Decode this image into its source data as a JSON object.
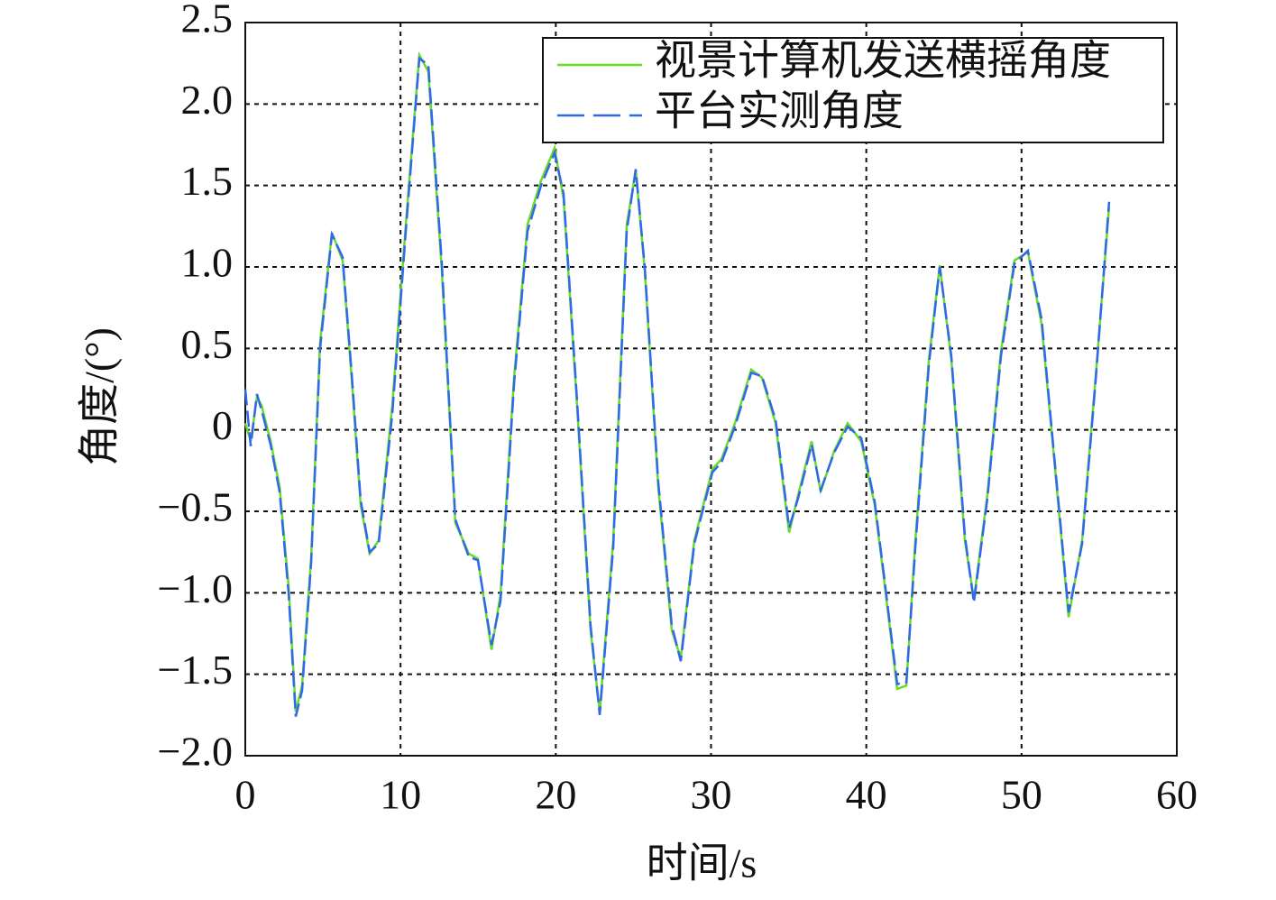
{
  "chart_data": {
    "type": "line",
    "xlabel": "时间/s",
    "ylabel": "角度/(°)",
    "x": [
      0.0,
      0.35,
      0.75,
      1.05,
      1.63,
      2.21,
      2.79,
      3.25,
      3.66,
      4.24,
      4.82,
      5.58,
      6.27,
      6.85,
      7.43,
      8.01,
      8.59,
      9.47,
      10.34,
      11.21,
      11.79,
      12.66,
      13.53,
      14.4,
      14.98,
      15.86,
      16.44,
      17.31,
      18.18,
      19.05,
      19.92,
      20.5,
      21.37,
      22.24,
      22.83,
      23.7,
      24.57,
      25.15,
      25.73,
      26.6,
      27.47,
      28.05,
      28.92,
      30.09,
      30.67,
      31.54,
      32.59,
      33.28,
      34.16,
      35.03,
      35.61,
      36.48,
      37.06,
      37.93,
      38.8,
      39.67,
      40.54,
      41.12,
      41.99,
      42.58,
      43.16,
      44.03,
      44.73,
      45.48,
      46.35,
      46.93,
      47.8,
      48.67,
      49.54,
      50.41,
      51.29,
      52.16,
      53.03,
      53.9,
      54.77,
      55.64
    ],
    "series": [
      {
        "name": "视景计算机发送横摇角度",
        "color": "#66dd22",
        "dash": false,
        "values": [
          0.04,
          -0.07,
          0.2,
          0.15,
          -0.07,
          -0.35,
          -0.96,
          -1.73,
          -1.57,
          -0.79,
          0.54,
          1.21,
          1.04,
          0.32,
          -0.46,
          -0.76,
          -0.68,
          0.15,
          1.26,
          2.3,
          2.2,
          0.98,
          -0.57,
          -0.76,
          -0.79,
          -1.35,
          -1.01,
          0.32,
          1.26,
          1.53,
          1.73,
          1.42,
          0.15,
          -1.23,
          -1.73,
          -0.68,
          1.26,
          1.59,
          0.98,
          -0.35,
          -1.23,
          -1.4,
          -0.68,
          -0.24,
          -0.18,
          0.04,
          0.37,
          0.32,
          0.04,
          -0.63,
          -0.4,
          -0.07,
          -0.38,
          -0.13,
          0.04,
          -0.07,
          -0.46,
          -0.9,
          -1.59,
          -1.57,
          -0.68,
          0.43,
          1.01,
          0.43,
          -0.68,
          -1.04,
          -0.4,
          0.48,
          1.04,
          1.09,
          0.65,
          -0.24,
          -1.15,
          -0.68,
          0.32,
          1.37
        ]
      },
      {
        "name": "平台实测角度",
        "color": "#3366ee",
        "dash": true,
        "values": [
          0.25,
          -0.1,
          0.22,
          0.12,
          -0.09,
          -0.38,
          -1.0,
          -1.76,
          -1.6,
          -0.82,
          0.5,
          1.2,
          1.06,
          0.35,
          -0.43,
          -0.75,
          -0.7,
          0.1,
          1.22,
          2.28,
          2.24,
          1.02,
          -0.55,
          -0.78,
          -0.8,
          -1.32,
          -1.05,
          0.28,
          1.22,
          1.5,
          1.7,
          1.45,
          0.18,
          -1.2,
          -1.75,
          -0.72,
          1.22,
          1.6,
          1.0,
          -0.32,
          -1.2,
          -1.42,
          -0.7,
          -0.26,
          -0.2,
          0.02,
          0.35,
          0.33,
          0.06,
          -0.6,
          -0.42,
          -0.09,
          -0.37,
          -0.14,
          0.02,
          -0.05,
          -0.44,
          -0.88,
          -1.56,
          -1.55,
          -0.72,
          0.4,
          1.0,
          0.45,
          -0.65,
          -1.06,
          -0.42,
          0.45,
          1.02,
          1.1,
          0.68,
          -0.22,
          -1.12,
          -0.7,
          0.3,
          1.4
        ]
      }
    ],
    "xlim": [
      0,
      60
    ],
    "xticks": [
      0,
      10,
      20,
      30,
      40,
      50,
      60
    ],
    "ylim": [
      -2,
      2.5
    ],
    "yticks": [
      {
        "value": -2,
        "label": "−2.0"
      },
      {
        "value": -1.5,
        "label": "−1.5"
      },
      {
        "value": -1,
        "label": "−1.0"
      },
      {
        "value": -0.5,
        "label": "−0.5"
      },
      0,
      0.5,
      {
        "value": 1,
        "label": "1.0"
      },
      1.5,
      {
        "value": 2,
        "label": "2.0"
      },
      2.5
    ],
    "grid": true,
    "legend": "upper right"
  }
}
